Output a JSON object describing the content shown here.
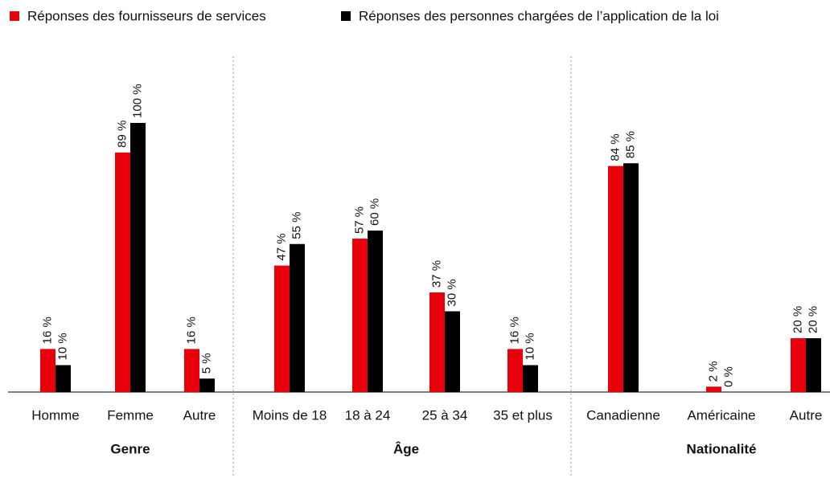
{
  "chart_data": {
    "type": "bar",
    "groups": [
      {
        "label": "Genre",
        "categories": [
          "Homme",
          "Femme",
          "Autre"
        ]
      },
      {
        "label": "Âge",
        "categories": [
          "Moins de 18",
          "18 à 24",
          "25 à 34",
          "35 et plus"
        ]
      },
      {
        "label": "Nationalité",
        "categories": [
          "Canadienne",
          "Américaine",
          "Autre"
        ]
      }
    ],
    "series": [
      {
        "name": "Réponses des fournisseurs de services",
        "color": "#e8000b",
        "values": [
          16,
          89,
          16,
          47,
          57,
          37,
          16,
          84,
          2,
          20
        ],
        "value_labels": [
          "16 %",
          "89 %",
          "16 %",
          "47 %",
          "57 %",
          "37 %",
          "16 %",
          "84 %",
          "2 %",
          "20 %"
        ]
      },
      {
        "name": "Réponses des personnes chargées de l’application de la loi",
        "color": "#000000",
        "values": [
          10,
          100,
          5,
          55,
          60,
          30,
          10,
          85,
          0,
          20
        ],
        "value_labels": [
          "10 %",
          "100 %",
          "5 %",
          "55 %",
          "60 %",
          "30 %",
          "10 %",
          "85 %",
          "0 %",
          "20 %"
        ]
      }
    ],
    "ylim": [
      0,
      100
    ]
  }
}
